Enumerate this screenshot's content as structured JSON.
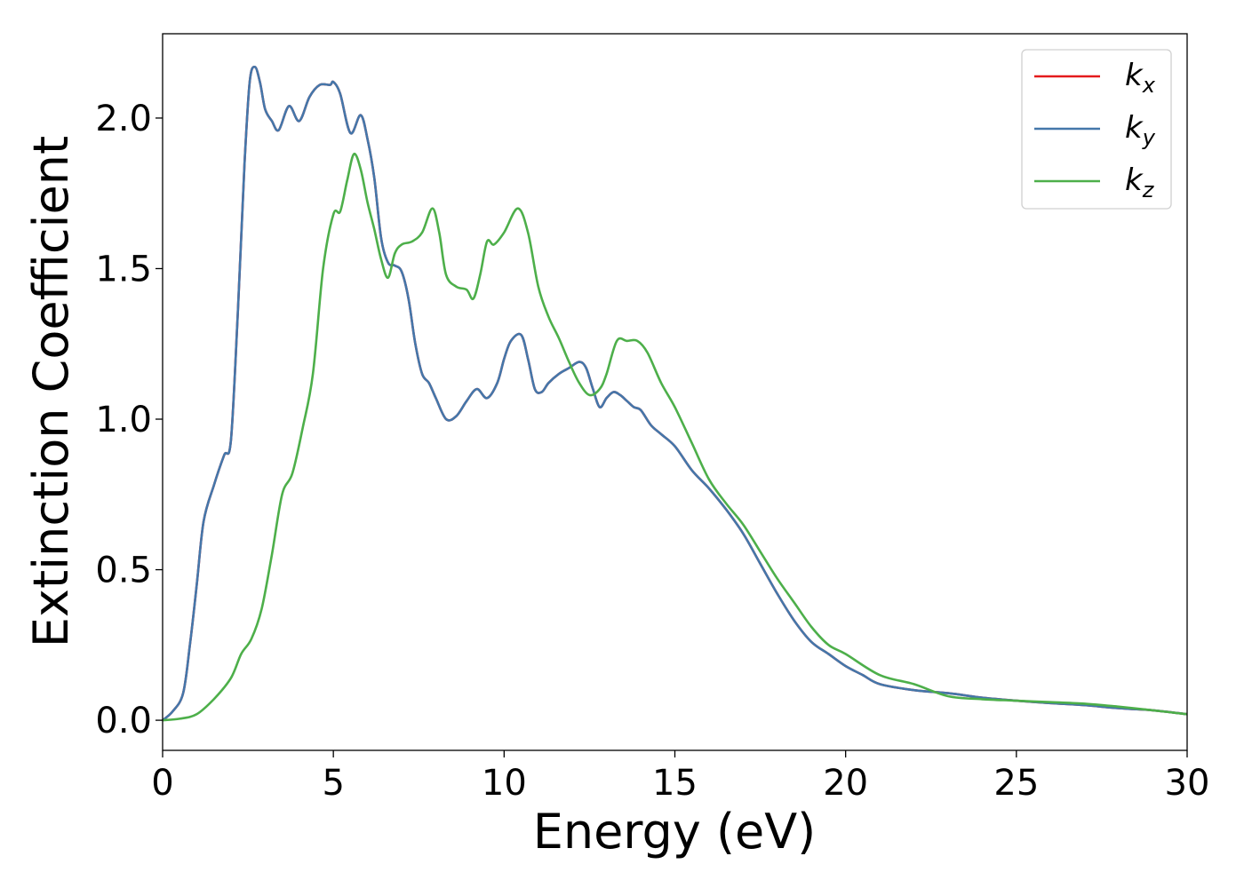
{
  "chart_data": {
    "type": "line",
    "xlabel": "Energy (eV)",
    "ylabel": "Extinction Coefficient",
    "xlim": [
      0,
      30
    ],
    "ylim": [
      -0.1,
      2.28
    ],
    "x_ticks": [
      0,
      5,
      10,
      15,
      20,
      25,
      30
    ],
    "x_tick_labels": [
      "0",
      "5",
      "10",
      "15",
      "20",
      "25",
      "30"
    ],
    "y_ticks": [
      0.0,
      0.5,
      1.0,
      1.5,
      2.0
    ],
    "y_tick_labels": [
      "0.0",
      "0.5",
      "1.0",
      "1.5",
      "2.0"
    ],
    "grid": false,
    "legend_position": "top-right",
    "series": [
      {
        "name": "k_x",
        "legend_main": "k",
        "legend_sub": "x",
        "color": "#e41a1c",
        "x": [
          0,
          0.3,
          0.6,
          0.8,
          1.0,
          1.2,
          1.5,
          1.8,
          2.0,
          2.2,
          2.4,
          2.55,
          2.7,
          2.85,
          3.0,
          3.2,
          3.4,
          3.7,
          4.0,
          4.3,
          4.6,
          4.9,
          5.0,
          5.2,
          5.5,
          5.8,
          6.0,
          6.2,
          6.4,
          6.6,
          6.8,
          7.0,
          7.2,
          7.4,
          7.6,
          7.8,
          8.0,
          8.3,
          8.6,
          8.9,
          9.2,
          9.5,
          9.8,
          10.0,
          10.2,
          10.5,
          10.7,
          10.9,
          11.1,
          11.3,
          11.6,
          11.9,
          12.2,
          12.4,
          12.6,
          12.8,
          13.0,
          13.2,
          13.4,
          13.6,
          13.8,
          14.0,
          14.3,
          14.6,
          15.0,
          15.5,
          16.0,
          16.5,
          17.0,
          17.5,
          18.0,
          18.5,
          19.0,
          19.5,
          20.0,
          20.5,
          21.0,
          22.0,
          23.0,
          24.0,
          25.0,
          26.0,
          27.0,
          28.0,
          29.0,
          30.0
        ],
        "y": [
          0.0,
          0.03,
          0.09,
          0.25,
          0.45,
          0.66,
          0.78,
          0.88,
          0.93,
          1.35,
          1.85,
          2.12,
          2.17,
          2.12,
          2.03,
          1.99,
          1.96,
          2.04,
          1.99,
          2.07,
          2.11,
          2.11,
          2.12,
          2.08,
          1.95,
          2.01,
          1.93,
          1.8,
          1.6,
          1.52,
          1.51,
          1.49,
          1.4,
          1.25,
          1.15,
          1.12,
          1.07,
          1.0,
          1.01,
          1.06,
          1.1,
          1.07,
          1.12,
          1.2,
          1.26,
          1.28,
          1.2,
          1.1,
          1.09,
          1.12,
          1.15,
          1.17,
          1.19,
          1.17,
          1.1,
          1.04,
          1.07,
          1.09,
          1.08,
          1.06,
          1.04,
          1.03,
          0.98,
          0.95,
          0.91,
          0.83,
          0.77,
          0.7,
          0.62,
          0.52,
          0.42,
          0.33,
          0.26,
          0.22,
          0.18,
          0.15,
          0.12,
          0.1,
          0.09,
          0.075,
          0.065,
          0.057,
          0.05,
          0.04,
          0.033,
          0.02
        ]
      },
      {
        "name": "k_y",
        "legend_main": "k",
        "legend_sub": "y",
        "color": "#4477aa",
        "x": [
          0,
          0.3,
          0.6,
          0.8,
          1.0,
          1.2,
          1.5,
          1.8,
          2.0,
          2.2,
          2.4,
          2.55,
          2.7,
          2.85,
          3.0,
          3.2,
          3.4,
          3.7,
          4.0,
          4.3,
          4.6,
          4.9,
          5.0,
          5.2,
          5.5,
          5.8,
          6.0,
          6.2,
          6.4,
          6.6,
          6.8,
          7.0,
          7.2,
          7.4,
          7.6,
          7.8,
          8.0,
          8.3,
          8.6,
          8.9,
          9.2,
          9.5,
          9.8,
          10.0,
          10.2,
          10.5,
          10.7,
          10.9,
          11.1,
          11.3,
          11.6,
          11.9,
          12.2,
          12.4,
          12.6,
          12.8,
          13.0,
          13.2,
          13.4,
          13.6,
          13.8,
          14.0,
          14.3,
          14.6,
          15.0,
          15.5,
          16.0,
          16.5,
          17.0,
          17.5,
          18.0,
          18.5,
          19.0,
          19.5,
          20.0,
          20.5,
          21.0,
          22.0,
          23.0,
          24.0,
          25.0,
          26.0,
          27.0,
          28.0,
          29.0,
          30.0
        ],
        "y": [
          0.0,
          0.03,
          0.09,
          0.25,
          0.45,
          0.66,
          0.78,
          0.88,
          0.93,
          1.35,
          1.85,
          2.12,
          2.17,
          2.12,
          2.03,
          1.99,
          1.96,
          2.04,
          1.99,
          2.07,
          2.11,
          2.11,
          2.12,
          2.08,
          1.95,
          2.01,
          1.93,
          1.8,
          1.6,
          1.52,
          1.51,
          1.49,
          1.4,
          1.25,
          1.15,
          1.12,
          1.07,
          1.0,
          1.01,
          1.06,
          1.1,
          1.07,
          1.12,
          1.2,
          1.26,
          1.28,
          1.2,
          1.1,
          1.09,
          1.12,
          1.15,
          1.17,
          1.19,
          1.17,
          1.1,
          1.04,
          1.07,
          1.09,
          1.08,
          1.06,
          1.04,
          1.03,
          0.98,
          0.95,
          0.91,
          0.83,
          0.77,
          0.7,
          0.62,
          0.52,
          0.42,
          0.33,
          0.26,
          0.22,
          0.18,
          0.15,
          0.12,
          0.1,
          0.09,
          0.075,
          0.065,
          0.057,
          0.05,
          0.04,
          0.033,
          0.02
        ]
      },
      {
        "name": "k_z",
        "legend_main": "k",
        "legend_sub": "z",
        "color": "#4daf4a",
        "x": [
          0,
          0.5,
          1.0,
          1.5,
          2.0,
          2.3,
          2.6,
          2.9,
          3.2,
          3.5,
          3.8,
          4.1,
          4.4,
          4.7,
          5.0,
          5.2,
          5.4,
          5.6,
          5.8,
          6.0,
          6.2,
          6.4,
          6.6,
          6.8,
          7.0,
          7.3,
          7.6,
          7.9,
          8.1,
          8.3,
          8.6,
          8.9,
          9.1,
          9.3,
          9.5,
          9.7,
          10.0,
          10.4,
          10.7,
          11.0,
          11.3,
          11.6,
          11.9,
          12.2,
          12.5,
          12.8,
          13.0,
          13.3,
          13.6,
          13.9,
          14.2,
          14.6,
          15.0,
          15.5,
          16.0,
          16.5,
          17.0,
          17.5,
          18.0,
          18.5,
          19.0,
          19.5,
          20.0,
          21.0,
          22.0,
          23.0,
          24.0,
          25.0,
          26.0,
          27.0,
          28.0,
          29.0,
          30.0
        ],
        "y": [
          0.0,
          0.005,
          0.02,
          0.07,
          0.14,
          0.22,
          0.27,
          0.37,
          0.55,
          0.75,
          0.82,
          0.97,
          1.15,
          1.5,
          1.68,
          1.69,
          1.79,
          1.88,
          1.83,
          1.72,
          1.63,
          1.53,
          1.47,
          1.55,
          1.58,
          1.59,
          1.62,
          1.7,
          1.62,
          1.48,
          1.44,
          1.43,
          1.4,
          1.48,
          1.59,
          1.58,
          1.62,
          1.7,
          1.62,
          1.44,
          1.34,
          1.27,
          1.19,
          1.12,
          1.08,
          1.1,
          1.15,
          1.26,
          1.26,
          1.26,
          1.22,
          1.12,
          1.04,
          0.92,
          0.8,
          0.72,
          0.65,
          0.56,
          0.47,
          0.39,
          0.31,
          0.25,
          0.22,
          0.15,
          0.12,
          0.08,
          0.07,
          0.065,
          0.06,
          0.055,
          0.045,
          0.033,
          0.02
        ]
      }
    ]
  }
}
